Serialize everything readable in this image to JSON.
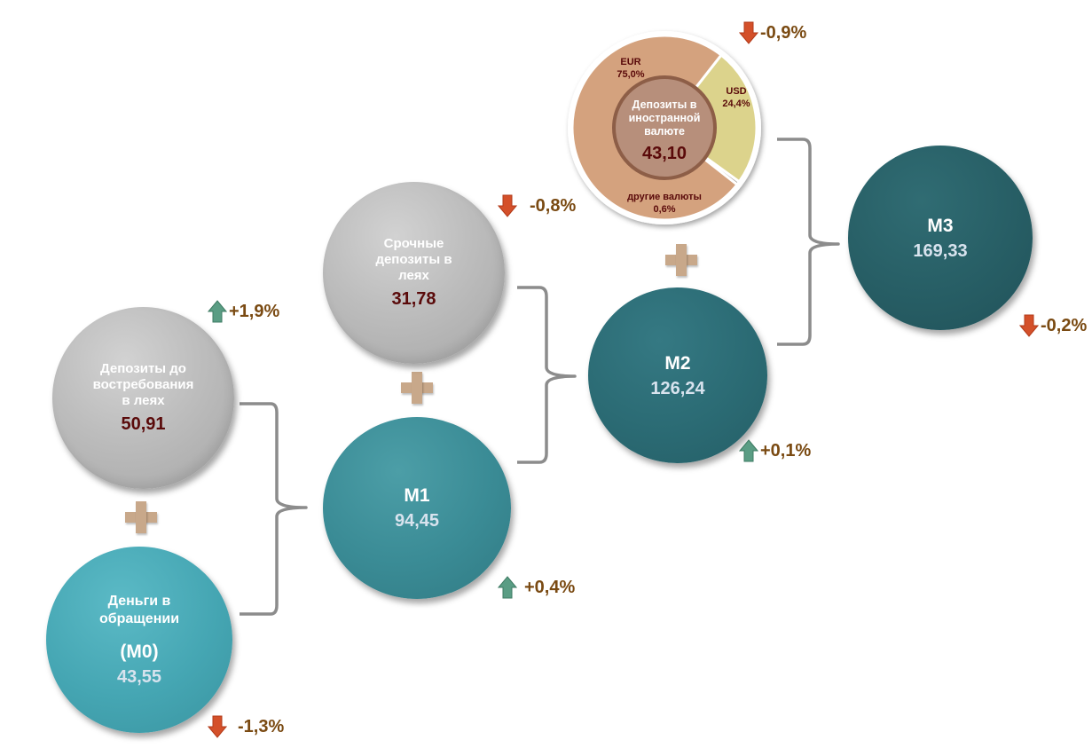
{
  "nodes": {
    "m0": {
      "label_line1": "Деньги в",
      "label_line2": "обращении",
      "code": "(M0)",
      "value": "43,55"
    },
    "demand": {
      "line1": "Депозиты до",
      "line2": "востребования",
      "line3": "в леях",
      "value": "50,91"
    },
    "m1": {
      "label": "M1",
      "value": "94,45"
    },
    "term": {
      "line1": "Срочные",
      "line2": "депозиты в",
      "line3": "леях",
      "value": "31,78"
    },
    "m2": {
      "label": "M2",
      "value": "126,24"
    },
    "foreign": {
      "line1": "Депозиты в",
      "line2": "иностранной",
      "line3": "валюте",
      "value": "43,10"
    },
    "m3": {
      "label": "M3",
      "value": "169,33"
    }
  },
  "changes": {
    "m0": {
      "text": "-1,3%",
      "direction": "down"
    },
    "demand": {
      "text": "+1,9%",
      "direction": "up"
    },
    "m1": {
      "text": "+0,4%",
      "direction": "up"
    },
    "term": {
      "text": "-0,8%",
      "direction": "down"
    },
    "m2": {
      "text": "+0,1%",
      "direction": "up"
    },
    "foreign": {
      "text": "-0,9%",
      "direction": "down"
    },
    "m3": {
      "text": "-0,2%",
      "direction": "down"
    }
  },
  "chart_data": {
    "type": "pie",
    "slices": [
      {
        "name": "EUR",
        "label": "EUR",
        "pct_text": "75,0%",
        "value": 75.0,
        "color": "#d4a27e"
      },
      {
        "name": "USD",
        "label": "USD",
        "pct_text": "24,4%",
        "value": 24.4,
        "color": "#dcd38c"
      },
      {
        "name": "другие валюты",
        "label": "другие валюты",
        "pct_text": "0,6%",
        "value": 0.6,
        "color": "#a09a92"
      }
    ]
  },
  "colors": {
    "arrow_up": "#5a9d84",
    "arrow_down": "#d4502a",
    "change_text": "#7a4a12",
    "plus": "#c8a88a",
    "bracket": "#8c8c8c"
  }
}
